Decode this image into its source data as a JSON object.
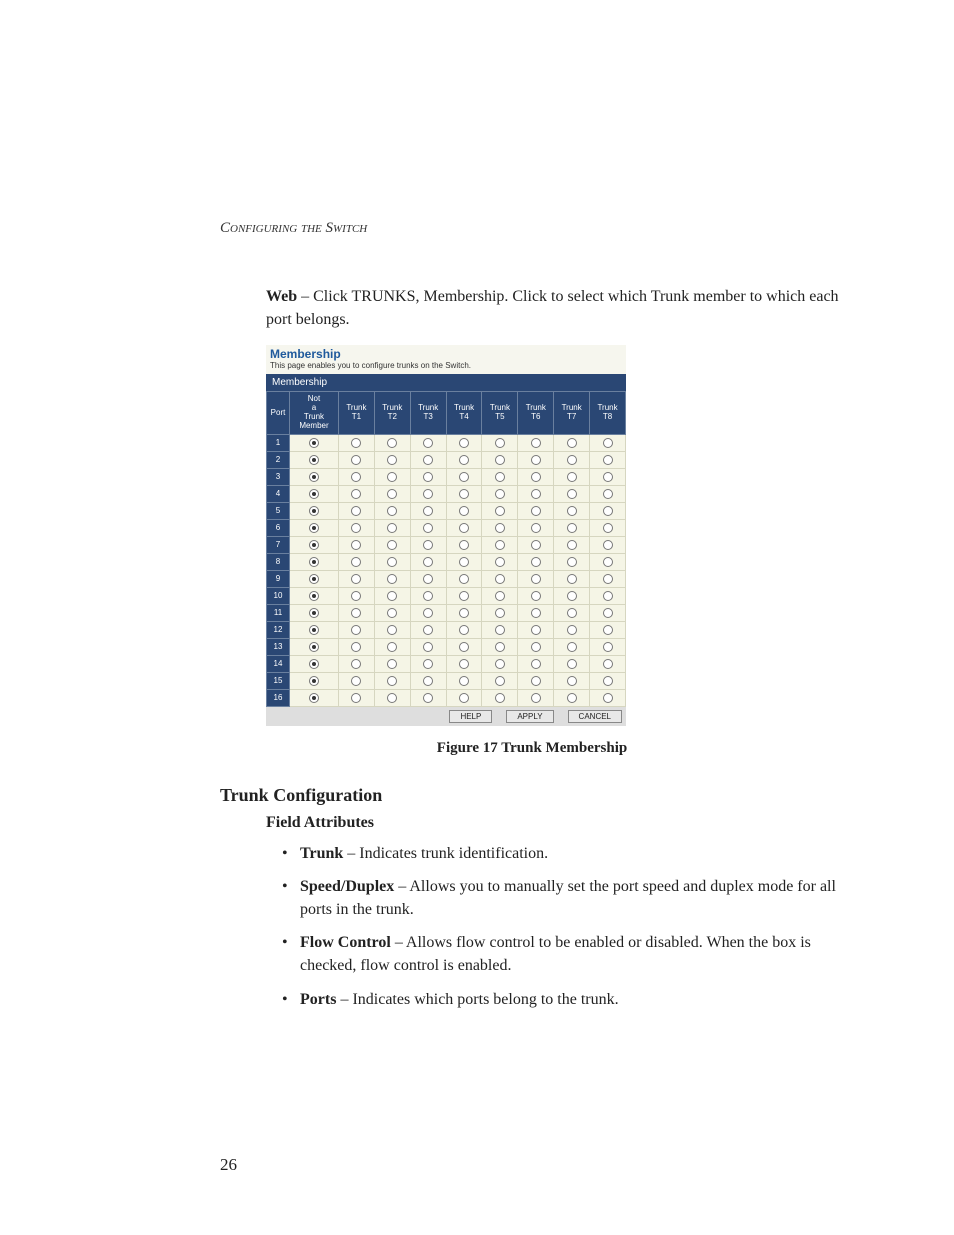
{
  "running_header": "Configuring the Switch",
  "intro_web_label": "Web",
  "intro_text_rest": " – Click TRUNKS, Membership. Click to select which Trunk member to which each port belongs.",
  "screenshot": {
    "title": "Membership",
    "subtitle": "This page enables you to configure trunks on the Switch.",
    "panel_label": "Membership",
    "columns": [
      "Port",
      "Not a Trunk Member",
      "Trunk T1",
      "Trunk T2",
      "Trunk T3",
      "Trunk T4",
      "Trunk T5",
      "Trunk T6",
      "Trunk T7",
      "Trunk T8"
    ],
    "port_count": 16,
    "selected_col_index": 1,
    "buttons": [
      "HELP",
      "APPLY",
      "CANCEL"
    ],
    "header_bg": "#2a4774",
    "header_fg": "#ffffff",
    "body_bg": "#f5f5e6",
    "title_color": "#205a9c"
  },
  "figure_caption": "Figure 17  Trunk Membership",
  "section_heading": "Trunk Configuration",
  "field_attributes_label": "Field Attributes",
  "attributes": [
    {
      "term": "Trunk",
      "desc": " – Indicates trunk identification."
    },
    {
      "term": "Speed/Duplex",
      "desc": " – Allows you to manually set the port speed and duplex mode for all ports in the trunk."
    },
    {
      "term": "Flow Control",
      "desc": " – Allows flow control to be enabled or disabled. When the box is checked, flow control is enabled."
    },
    {
      "term": "Ports",
      "desc": " – Indicates which ports belong to the trunk."
    }
  ],
  "page_number": "26"
}
